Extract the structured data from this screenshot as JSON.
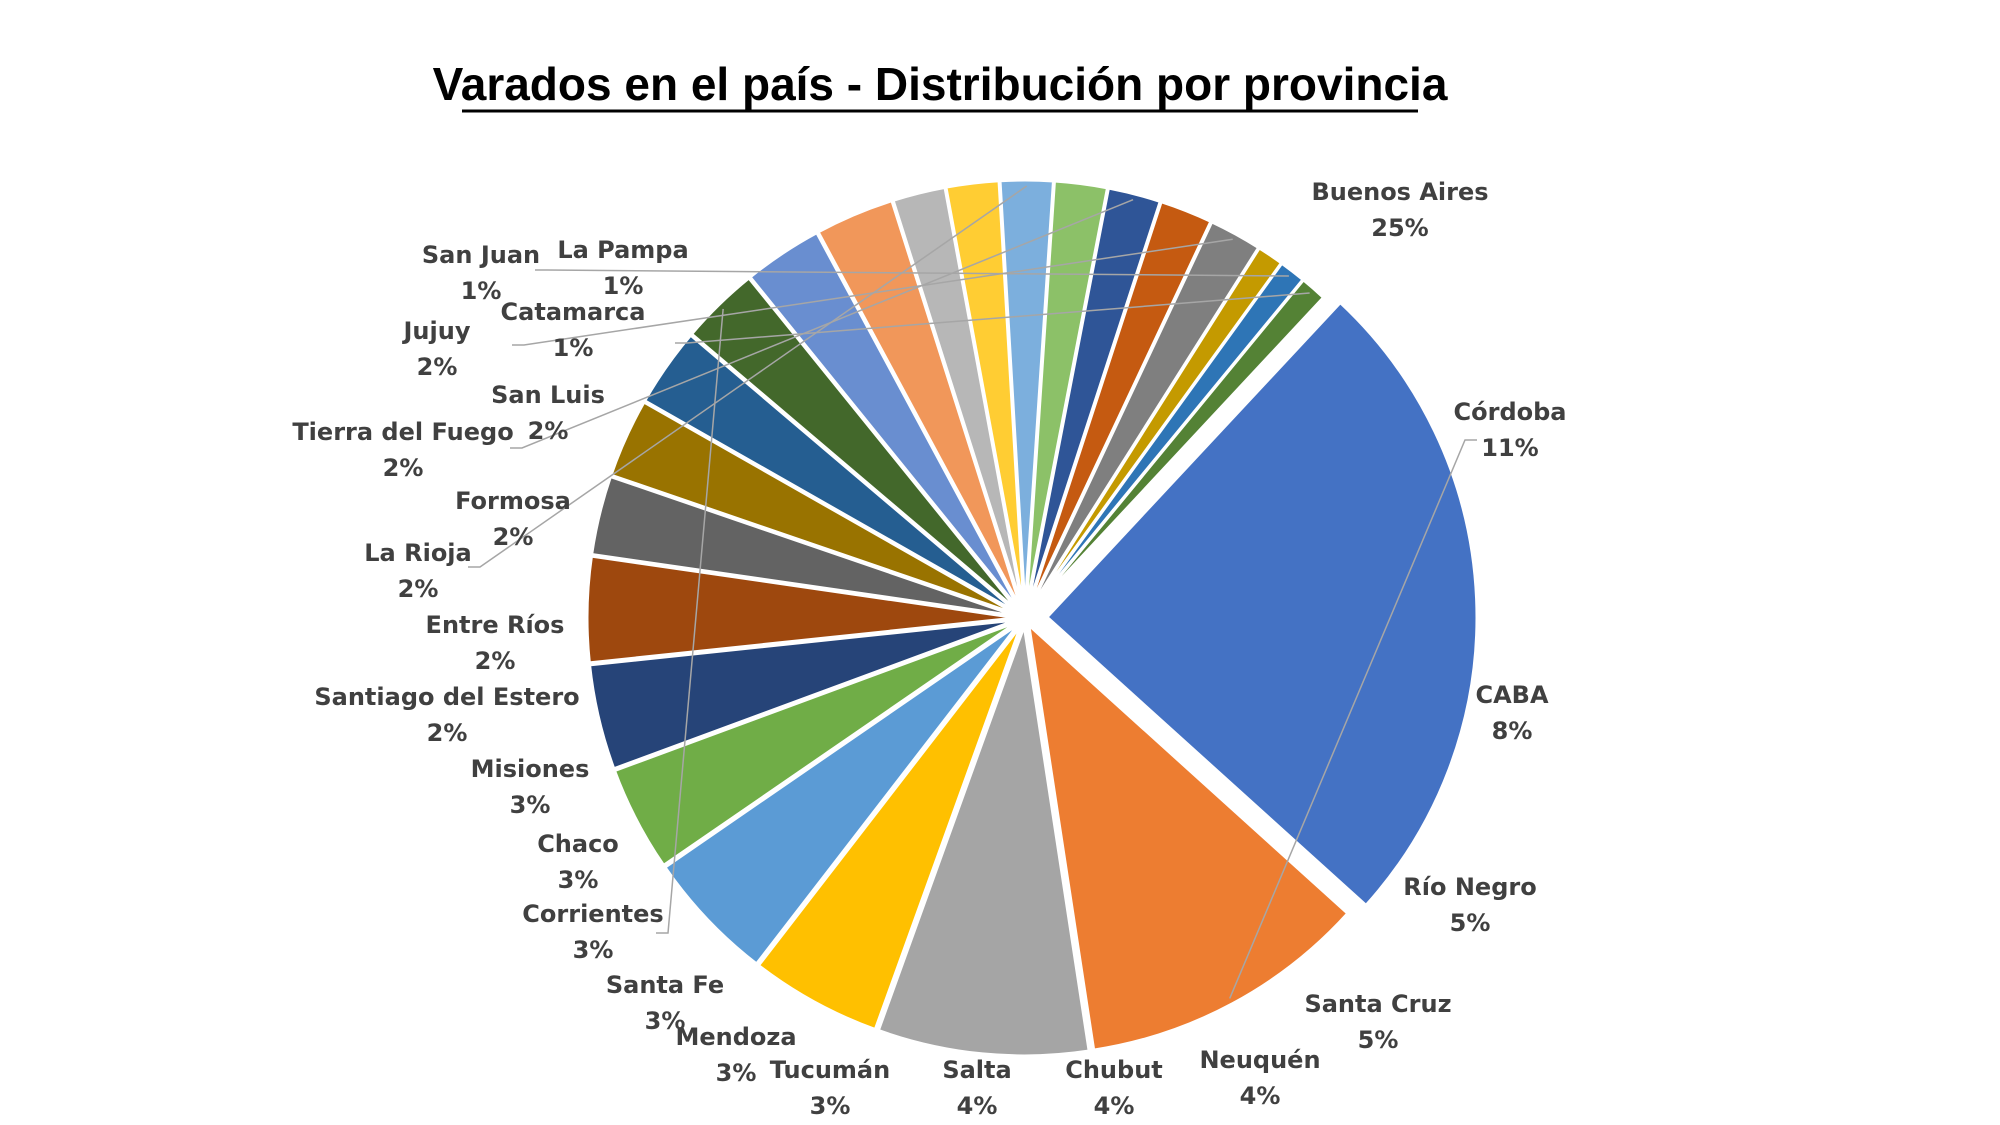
{
  "chart_data": {
    "type": "pie",
    "title": "Varados en el país - Distribución por provincia",
    "label_format": "category_percent",
    "exploded": true,
    "slices": [
      {
        "name": "Buenos Aires",
        "value": 25,
        "label": "25%",
        "color": "#4472C4"
      },
      {
        "name": "Córdoba",
        "value": 11,
        "label": "11%",
        "color": "#ED7D31"
      },
      {
        "name": "CABA",
        "value": 8,
        "label": "8%",
        "color": "#A5A5A5"
      },
      {
        "name": "Río Negro",
        "value": 5,
        "label": "5%",
        "color": "#FFC000"
      },
      {
        "name": "Santa Cruz",
        "value": 5,
        "label": "5%",
        "color": "#5B9BD5"
      },
      {
        "name": "Neuquén",
        "value": 4,
        "label": "4%",
        "color": "#70AD47"
      },
      {
        "name": "Chubut",
        "value": 4,
        "label": "4%",
        "color": "#264478"
      },
      {
        "name": "Salta",
        "value": 4,
        "label": "4%",
        "color": "#9E480E"
      },
      {
        "name": "Tucumán",
        "value": 3,
        "label": "3%",
        "color": "#636363"
      },
      {
        "name": "Mendoza",
        "value": 3,
        "label": "3%",
        "color": "#997300"
      },
      {
        "name": "Santa Fe",
        "value": 3,
        "label": "3%",
        "color": "#255E91"
      },
      {
        "name": "Corrientes",
        "value": 3,
        "label": "3%",
        "color": "#43682B"
      },
      {
        "name": "Chaco",
        "value": 3,
        "label": "3%",
        "color": "#698ED0"
      },
      {
        "name": "Misiones",
        "value": 3,
        "label": "3%",
        "color": "#F1975A"
      },
      {
        "name": "Santiago del Estero",
        "value": 2,
        "label": "2%",
        "color": "#B7B7B7"
      },
      {
        "name": "Entre Ríos",
        "value": 2,
        "label": "2%",
        "color": "#FFCD33"
      },
      {
        "name": "La Rioja",
        "value": 2,
        "label": "2%",
        "color": "#7CAFDD"
      },
      {
        "name": "Formosa",
        "value": 2,
        "label": "2%",
        "color": "#8CC168"
      },
      {
        "name": "Tierra del Fuego",
        "value": 2,
        "label": "2%",
        "color": "#2F5597"
      },
      {
        "name": "San Luis",
        "value": 2,
        "label": "2%",
        "color": "#C55A11"
      },
      {
        "name": "Jujuy",
        "value": 2,
        "label": "2%",
        "color": "#7F7F7F"
      },
      {
        "name": "Catamarca",
        "value": 1,
        "label": "1%",
        "color": "#C49A00"
      },
      {
        "name": "San Juan",
        "value": 1,
        "label": "1%",
        "color": "#2E75B6"
      },
      {
        "name": "La Pampa",
        "value": 1,
        "label": "1%",
        "color": "#548235"
      }
    ]
  }
}
